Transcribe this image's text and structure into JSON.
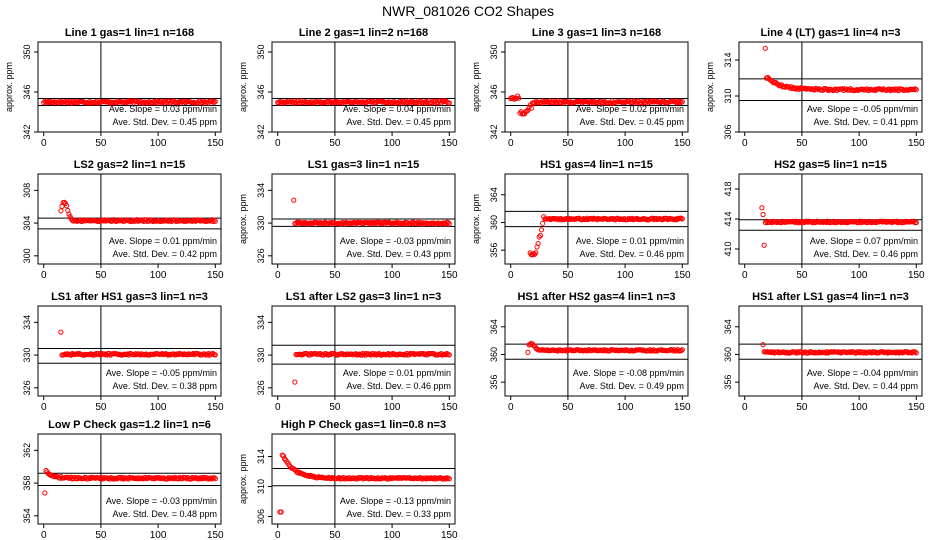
{
  "figure_title": "NWR_081026  CO2 Shapes",
  "style": {
    "point_color": "#ff0000",
    "line_color": "#000000"
  },
  "chart_data": [
    {
      "type": "scatter",
      "title": "Line 1 gas=1 lin=1 n=168",
      "ylabel": "approx. ppm",
      "xlim": [
        -5,
        155
      ],
      "ylim": [
        342,
        351
      ],
      "xticks": [
        0,
        50,
        100,
        150
      ],
      "yticks": [
        342,
        346,
        350
      ],
      "vline": 50,
      "hlines": [
        345.35,
        344.65
      ],
      "shape": {
        "kind": "flat",
        "level": 345
      },
      "scatter_count": 150,
      "slope_text": "Ave. Slope =  0.03  ppm/min",
      "sd_text": "Ave. Std. Dev. =  0.45  ppm"
    },
    {
      "type": "scatter",
      "title": "Line 2 gas=1 lin=2 n=168",
      "ylabel": "approx. ppm",
      "xlim": [
        -5,
        155
      ],
      "ylim": [
        342,
        351
      ],
      "xticks": [
        0,
        50,
        100,
        150
      ],
      "yticks": [
        342,
        346,
        350
      ],
      "vline": 50,
      "hlines": [
        345.35,
        344.65
      ],
      "shape": {
        "kind": "flat",
        "level": 345
      },
      "scatter_count": 150,
      "slope_text": "Ave. Slope =  0.04  ppm/min",
      "sd_text": "Ave. Std. Dev. =  0.45  ppm"
    },
    {
      "type": "scatter",
      "title": "Line 3 gas=1 lin=3 n=168",
      "ylabel": "approx. ppm",
      "xlim": [
        -5,
        155
      ],
      "ylim": [
        342,
        351
      ],
      "xticks": [
        0,
        50,
        100,
        150
      ],
      "yticks": [
        342,
        346,
        350
      ],
      "vline": 50,
      "hlines": [
        345.35,
        344.65
      ],
      "shape": {
        "kind": "dip",
        "level": 345,
        "start": 345.4,
        "low": 344.0,
        "rec": 20
      },
      "scatter_count": 150,
      "slope_text": "Ave. Slope =  0.02  ppm/min",
      "sd_text": "Ave. Std. Dev. =  0.45  ppm"
    },
    {
      "type": "scatter",
      "title": "Line 4 (LT) gas=1 lin=4 n=3",
      "ylabel": "approx. ppm",
      "xlim": [
        -5,
        155
      ],
      "ylim": [
        306,
        316
      ],
      "xticks": [
        0,
        50,
        100,
        150
      ],
      "yticks": [
        306,
        310,
        314
      ],
      "vline": 50,
      "hlines": [
        311.9,
        309.5
      ],
      "shape": {
        "kind": "decay",
        "start": 315.3,
        "peak": 312.2,
        "level": 310.7,
        "x0": 18,
        "tau": 12
      },
      "scatter_count": 130,
      "slope_text": "Ave. Slope =  -0.05  ppm/min",
      "sd_text": "Ave. Std. Dev. =  0.41  ppm"
    },
    {
      "type": "scatter",
      "title": "LS2 gas=2 lin=1 n=15",
      "ylabel": "",
      "xlim": [
        -5,
        155
      ],
      "ylim": [
        299,
        310
      ],
      "xticks": [
        0,
        50,
        100,
        150
      ],
      "yticks": [
        300,
        304,
        308
      ],
      "vline": 50,
      "hlines": [
        304.6,
        303.3
      ],
      "shape": {
        "kind": "bump",
        "level": 304.3,
        "first": 305.5,
        "peak": 306.6,
        "x0": 15
      },
      "scatter_count": 135,
      "slope_text": "Ave. Slope =  0.01  ppm/min",
      "sd_text": "Ave. Std. Dev. =  0.42  ppm"
    },
    {
      "type": "scatter",
      "title": "LS1 gas=3 lin=1 n=15",
      "ylabel": "approx. ppm",
      "xlim": [
        -5,
        155
      ],
      "ylim": [
        325,
        336
      ],
      "xticks": [
        0,
        50,
        100,
        150
      ],
      "yticks": [
        326,
        330,
        334
      ],
      "vline": 50,
      "hlines": [
        330.5,
        329.6
      ],
      "shape": {
        "kind": "spike",
        "level": 330,
        "spike": 332.8,
        "x0": 14
      },
      "scatter_count": 135,
      "slope_text": "Ave. Slope =  -0.03  ppm/min",
      "sd_text": "Ave. Std. Dev. =  0.43  ppm"
    },
    {
      "type": "scatter",
      "title": "HS1 gas=4 lin=1 n=15",
      "ylabel": "approx. ppm",
      "xlim": [
        -5,
        155
      ],
      "ylim": [
        354,
        367
      ],
      "xticks": [
        0,
        50,
        100,
        150
      ],
      "yticks": [
        356,
        360,
        364
      ],
      "vline": 50,
      "hlines": [
        361.6,
        359.4
      ],
      "shape": {
        "kind": "rise",
        "level": 360.5,
        "low": 355.6,
        "x0": 17
      },
      "scatter_count": 135,
      "slope_text": "Ave. Slope =  0.01  ppm/min",
      "sd_text": "Ave. Std. Dev. =  0.46  ppm"
    },
    {
      "type": "scatter",
      "title": "HS2 gas=5 lin=1 n=15",
      "ylabel": "",
      "xlim": [
        -5,
        155
      ],
      "ylim": [
        408,
        420
      ],
      "xticks": [
        0,
        50,
        100,
        150
      ],
      "yticks": [
        410,
        414,
        418
      ],
      "vline": 50,
      "hlines": [
        413.9,
        412.5
      ],
      "shape": {
        "kind": "scatter_start",
        "level": 413.6,
        "early": [
          415.5,
          414.6,
          410.5
        ],
        "x0": 15
      },
      "scatter_count": 135,
      "slope_text": "Ave. Slope =  0.07  ppm/min",
      "sd_text": "Ave. Std. Dev. =  0.46  ppm"
    },
    {
      "type": "scatter",
      "title": "LS1 after HS1 gas=3 lin=1 n=3",
      "ylabel": "",
      "xlim": [
        -5,
        155
      ],
      "ylim": [
        325,
        336
      ],
      "xticks": [
        0,
        50,
        100,
        150
      ],
      "yticks": [
        326,
        330,
        334
      ],
      "vline": 50,
      "hlines": [
        330.8,
        329
      ],
      "shape": {
        "kind": "spike",
        "level": 330.1,
        "spike": 332.8,
        "x0": 15
      },
      "scatter_count": 135,
      "slope_text": "Ave. Slope =  -0.05  ppm/min",
      "sd_text": "Ave. Std. Dev. =  0.38  ppm"
    },
    {
      "type": "scatter",
      "title": "LS1 after LS2 gas=3 lin=1 n=3",
      "ylabel": "",
      "xlim": [
        -5,
        155
      ],
      "ylim": [
        325,
        336
      ],
      "xticks": [
        0,
        50,
        100,
        150
      ],
      "yticks": [
        326,
        330,
        334
      ],
      "vline": 50,
      "hlines": [
        331.2,
        328.9
      ],
      "shape": {
        "kind": "low_start",
        "level": 330.1,
        "low": 326.7,
        "x0": 15
      },
      "scatter_count": 135,
      "slope_text": "Ave. Slope =  0.01  ppm/min",
      "sd_text": "Ave. Std. Dev. =  0.46  ppm"
    },
    {
      "type": "scatter",
      "title": "HS1 after HS2 gas=4 lin=1 n=3",
      "ylabel": "",
      "xlim": [
        -5,
        155
      ],
      "ylim": [
        354,
        367
      ],
      "xticks": [
        0,
        50,
        100,
        150
      ],
      "yticks": [
        356,
        360,
        364
      ],
      "vline": 50,
      "hlines": [
        361.5,
        359.3
      ],
      "shape": {
        "kind": "bump",
        "level": 360.6,
        "first": 360.3,
        "peak": 361.6,
        "x0": 15
      },
      "scatter_count": 135,
      "slope_text": "Ave. Slope =  -0.08  ppm/min",
      "sd_text": "Ave. Std. Dev. =  0.49  ppm"
    },
    {
      "type": "scatter",
      "title": "HS1 after LS1 gas=4 lin=1 n=3",
      "ylabel": "",
      "xlim": [
        -5,
        155
      ],
      "ylim": [
        354,
        367
      ],
      "xticks": [
        0,
        50,
        100,
        150
      ],
      "yticks": [
        356,
        360,
        364
      ],
      "vline": 50,
      "hlines": [
        361.5,
        359.3
      ],
      "shape": {
        "kind": "spike",
        "level": 360.3,
        "spike": 361.4,
        "x0": 16
      },
      "scatter_count": 135,
      "slope_text": "Ave. Slope =  -0.04  ppm/min",
      "sd_text": "Ave. Std. Dev. =  0.44  ppm"
    },
    {
      "type": "scatter",
      "title": "Low P Check gas=1.2 lin=1 n=6",
      "ylabel": "",
      "xlim": [
        -5,
        155
      ],
      "ylim": [
        353,
        364
      ],
      "xticks": [
        0,
        50,
        100,
        150
      ],
      "yticks": [
        354,
        358,
        362
      ],
      "vline": 50,
      "hlines": [
        359.2,
        357.7
      ],
      "shape": {
        "kind": "decay",
        "start": 356.8,
        "peak": 359.6,
        "level": 358.6,
        "x0": 1,
        "tau": 6
      },
      "scatter_count": 150,
      "slope_text": "Ave. Slope =  -0.03  ppm/min",
      "sd_text": "Ave. Std. Dev. =  0.48  ppm"
    },
    {
      "type": "scatter",
      "title": "High P Check gas=1 lin=0.8 n=3",
      "ylabel": "approx. ppm",
      "xlim": [
        -5,
        155
      ],
      "ylim": [
        305,
        317
      ],
      "xticks": [
        0,
        50,
        100,
        150
      ],
      "yticks": [
        306,
        310,
        314
      ],
      "vline": 50,
      "hlines": [
        312.4,
        310.1
      ],
      "shape": {
        "kind": "decay",
        "start": 306.6,
        "peak": 315,
        "level": 311.1,
        "x0": 2,
        "tau": 10
      },
      "scatter_count": 150,
      "slope_text": "Ave. Slope =  -0.13  ppm/min",
      "sd_text": "Ave. Std. Dev. =  0.33  ppm"
    }
  ]
}
